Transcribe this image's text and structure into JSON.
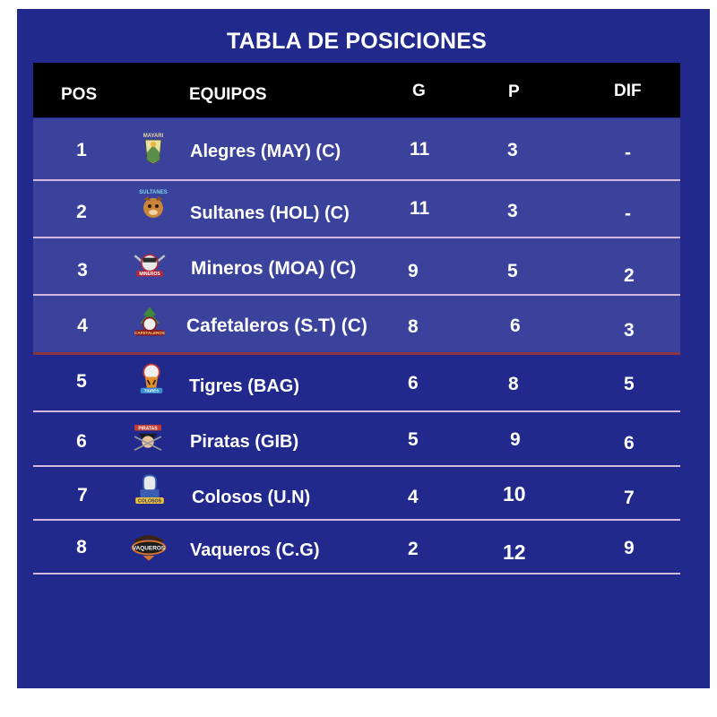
{
  "title": "TABLA DE POSICIONES",
  "headers": {
    "pos": "POS",
    "team": "EQUIPOS",
    "g": "G",
    "p": "P",
    "dif": "DIF"
  },
  "colors": {
    "panel": "#212a8c",
    "header": "#000000",
    "highlight": "#3a429b",
    "divider": "#d7b7dc",
    "playoff_line": "#8b3542"
  },
  "rows": [
    {
      "pos": "1",
      "team": "Alegres (MAY)  (C)",
      "g": "11",
      "p": "3",
      "dif": "-",
      "logo": "alegres-logo",
      "logo_text": "MAYARI"
    },
    {
      "pos": "2",
      "team": "Sultanes (HOL) (C)",
      "g": "11",
      "p": "3",
      "dif": "-",
      "logo": "sultanes-logo",
      "logo_text": "SULTANES"
    },
    {
      "pos": "3",
      "team": "Mineros (MOA)  (C)",
      "g": "9",
      "p": "5",
      "dif": "2",
      "logo": "mineros-logo",
      "logo_text": "MINEROS"
    },
    {
      "pos": "4",
      "team": "Cafetaleros (S.T) (C)",
      "g": "8",
      "p": "6",
      "dif": "3",
      "logo": "cafetaleros-logo",
      "logo_text": "CAFETALEROS"
    },
    {
      "pos": "5",
      "team": "Tigres (BAG)",
      "g": "6",
      "p": "8",
      "dif": "5",
      "logo": "tigres-logo",
      "logo_text": "TIGRES"
    },
    {
      "pos": "6",
      "team": "Piratas (GIB)",
      "g": "5",
      "p": "9",
      "dif": "6",
      "logo": "piratas-logo",
      "logo_text": "PIRATAS"
    },
    {
      "pos": "7",
      "team": "Colosos (U.N)",
      "g": "4",
      "p": "10",
      "dif": "7",
      "logo": "colosos-logo",
      "logo_text": "COLOSOS"
    },
    {
      "pos": "8",
      "team": "Vaqueros (C.G)",
      "g": "2",
      "p": "12",
      "dif": "9",
      "logo": "vaqueros-logo",
      "logo_text": "VAQUEROS"
    }
  ]
}
